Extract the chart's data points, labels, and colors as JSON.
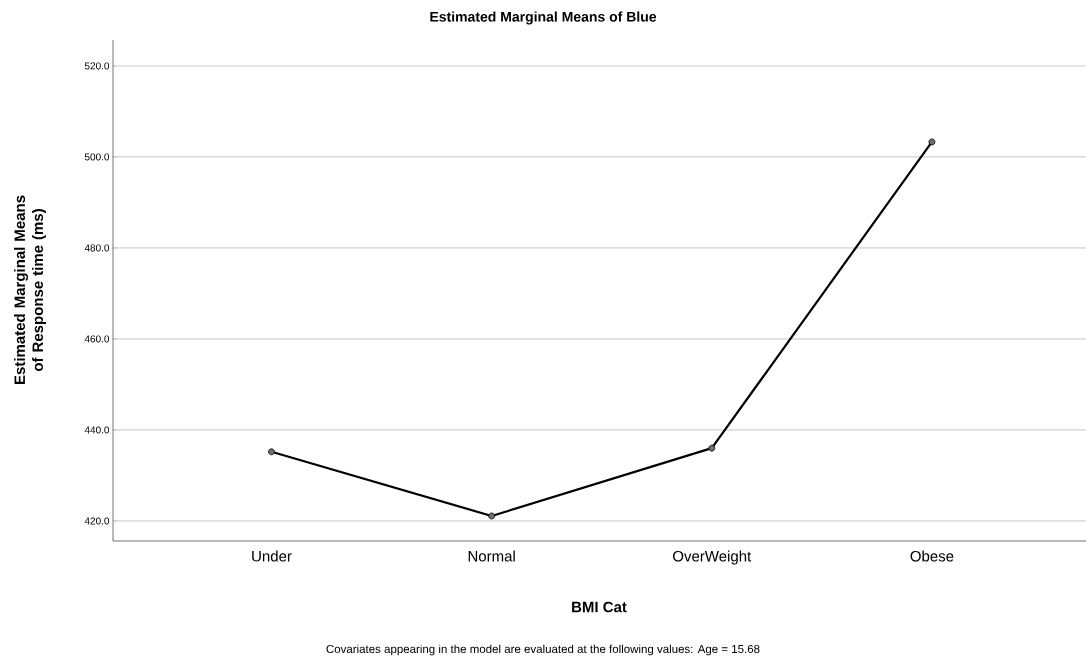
{
  "chart_data": {
    "type": "line",
    "title": "Estimated Marginal Means of Blue",
    "xlabel": "BMI Cat",
    "ylabel": "Estimated Marginal Means of Response time (ms)",
    "annotations": [
      "Covariates appearing in the model are evaluated at the following values: Age = 15.68"
    ],
    "categories": [
      "Under",
      "Normal",
      "OverWeight",
      "Obese"
    ],
    "series": [
      {
        "color": "#000000",
        "values": [
          435.2,
          421.1,
          436.0,
          503.3
        ]
      }
    ],
    "ylim": [
      415.6,
      525.7
    ],
    "yticks": [
      {
        "value": 420,
        "label": "420.0"
      },
      {
        "value": 440,
        "label": "440.0"
      },
      {
        "value": 460,
        "label": "460.0"
      },
      {
        "value": 480,
        "label": "480.0"
      },
      {
        "value": 500,
        "label": "500.0"
      },
      {
        "value": 520,
        "label": "520.0"
      }
    ],
    "grid": "y",
    "marker": "circle",
    "line_style": "solid"
  }
}
